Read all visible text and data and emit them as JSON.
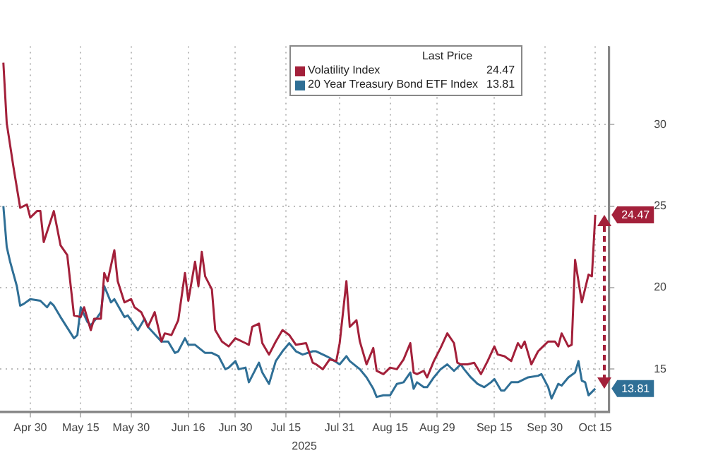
{
  "chart_data": {
    "type": "line",
    "xlabel": "2025",
    "legend_title": "Last Price",
    "legend": "top",
    "grid": true,
    "marker": "none",
    "line_style": "solid",
    "xlim": [
      "2025-04-21",
      "2025-10-19"
    ],
    "xticks": [
      {
        "value": "2025-04-30",
        "label": "Apr 30"
      },
      {
        "value": "2025-05-15",
        "label": "May 15"
      },
      {
        "value": "2025-05-30",
        "label": "May 30"
      },
      {
        "value": "2025-06-16",
        "label": "Jun 16"
      },
      {
        "value": "2025-06-30",
        "label": "Jun 30"
      },
      {
        "value": "2025-07-15",
        "label": "Jul 15"
      },
      {
        "value": "2025-07-31",
        "label": "Jul 31"
      },
      {
        "value": "2025-08-15",
        "label": "Aug 15"
      },
      {
        "value": "2025-08-29",
        "label": "Aug 29"
      },
      {
        "value": "2025-09-15",
        "label": "Sep 15"
      },
      {
        "value": "2025-09-30",
        "label": "Sep 30"
      },
      {
        "value": "2025-10-15",
        "label": "Oct 15"
      }
    ],
    "ylim": [
      12.4,
      34.8
    ],
    "yticks": [
      15,
      20,
      25,
      30
    ],
    "series": [
      {
        "name": "Volatility Index",
        "color": "#a3203a",
        "x": [
          "2025-04-22",
          "2025-04-23",
          "2025-04-25",
          "2025-04-27",
          "2025-04-29",
          "2025-04-30",
          "2025-05-02",
          "2025-05-03",
          "2025-05-04",
          "2025-05-07",
          "2025-05-09",
          "2025-05-11",
          "2025-05-13",
          "2025-05-15",
          "2025-05-16",
          "2025-05-18",
          "2025-05-19",
          "2025-05-21",
          "2025-05-22",
          "2025-05-23",
          "2025-05-25",
          "2025-05-26",
          "2025-05-28",
          "2025-05-30",
          "2025-05-31",
          "2025-06-02",
          "2025-06-04",
          "2025-06-06",
          "2025-06-08",
          "2025-06-09",
          "2025-06-11",
          "2025-06-13",
          "2025-06-15",
          "2025-06-16",
          "2025-06-18",
          "2025-06-19",
          "2025-06-20",
          "2025-06-21",
          "2025-06-23",
          "2025-06-24",
          "2025-06-26",
          "2025-06-28",
          "2025-06-30",
          "2025-07-03",
          "2025-07-04",
          "2025-07-05",
          "2025-07-07",
          "2025-07-08",
          "2025-07-10",
          "2025-07-12",
          "2025-07-14",
          "2025-07-16",
          "2025-07-18",
          "2025-07-21",
          "2025-07-23",
          "2025-07-24",
          "2025-07-26",
          "2025-07-28",
          "2025-07-30",
          "2025-07-31",
          "2025-08-02",
          "2025-08-03",
          "2025-08-05",
          "2025-08-06",
          "2025-08-08",
          "2025-08-10",
          "2025-08-11",
          "2025-08-13",
          "2025-08-15",
          "2025-08-17",
          "2025-08-19",
          "2025-08-21",
          "2025-08-22",
          "2025-08-23",
          "2025-08-25",
          "2025-08-26",
          "2025-08-28",
          "2025-08-30",
          "2025-09-01",
          "2025-09-03",
          "2025-09-04",
          "2025-09-05",
          "2025-09-07",
          "2025-09-09",
          "2025-09-11",
          "2025-09-13",
          "2025-09-15",
          "2025-09-16",
          "2025-09-18",
          "2025-09-20",
          "2025-09-22",
          "2025-09-23",
          "2025-09-24",
          "2025-09-26",
          "2025-09-28",
          "2025-09-29",
          "2025-10-01",
          "2025-10-03",
          "2025-10-04",
          "2025-10-05",
          "2025-10-07",
          "2025-10-08",
          "2025-10-09",
          "2025-10-11",
          "2025-10-13",
          "2025-10-14",
          "2025-10-15"
        ],
        "values": [
          33.8,
          30.1,
          27.4,
          24.9,
          25.1,
          24.3,
          24.7,
          24.7,
          22.8,
          24.7,
          22.6,
          22.0,
          18.3,
          18.2,
          18.8,
          17.4,
          18.1,
          18.1,
          20.9,
          20.4,
          22.3,
          20.4,
          19.1,
          19.3,
          18.8,
          18.5,
          17.6,
          18.5,
          16.7,
          17.2,
          17.1,
          18.0,
          20.9,
          19.2,
          21.6,
          20.1,
          22.2,
          20.7,
          19.9,
          17.4,
          16.7,
          16.4,
          16.9,
          16.6,
          16.5,
          17.6,
          17.8,
          16.6,
          15.9,
          16.7,
          17.4,
          17.1,
          16.5,
          16.6,
          15.4,
          15.3,
          15.0,
          15.6,
          15.5,
          16.6,
          20.4,
          17.6,
          18.0,
          16.7,
          15.3,
          16.3,
          14.9,
          14.7,
          15.1,
          15.0,
          15.6,
          16.6,
          14.8,
          14.7,
          14.9,
          14.5,
          15.5,
          16.3,
          17.2,
          16.6,
          15.4,
          15.3,
          15.3,
          15.4,
          14.7,
          15.5,
          16.4,
          15.9,
          15.8,
          15.5,
          16.6,
          16.3,
          16.7,
          15.3,
          16.1,
          16.3,
          16.7,
          16.7,
          16.4,
          17.2,
          16.4,
          16.5,
          21.7,
          19.1,
          20.8,
          20.7,
          24.47
        ]
      },
      {
        "name": "20 Year Treasury Bond ETF Index",
        "color": "#2f6f96",
        "x": [
          "2025-04-22",
          "2025-04-23",
          "2025-04-24",
          "2025-04-26",
          "2025-04-27",
          "2025-04-28",
          "2025-04-30",
          "2025-05-03",
          "2025-05-05",
          "2025-05-06",
          "2025-05-07",
          "2025-05-09",
          "2025-05-13",
          "2025-05-14",
          "2025-05-15",
          "2025-05-17",
          "2025-05-18",
          "2025-05-20",
          "2025-05-21",
          "2025-05-22",
          "2025-05-24",
          "2025-05-25",
          "2025-05-28",
          "2025-05-29",
          "2025-06-01",
          "2025-06-03",
          "2025-06-04",
          "2025-06-08",
          "2025-06-10",
          "2025-06-12",
          "2025-06-13",
          "2025-06-15",
          "2025-06-16",
          "2025-06-18",
          "2025-06-21",
          "2025-06-23",
          "2025-06-25",
          "2025-06-27",
          "2025-06-28",
          "2025-06-30",
          "2025-07-01",
          "2025-07-03",
          "2025-07-04",
          "2025-07-07",
          "2025-07-08",
          "2025-07-10",
          "2025-07-12",
          "2025-07-14",
          "2025-07-16",
          "2025-07-18",
          "2025-07-20",
          "2025-07-23",
          "2025-07-24",
          "2025-07-27",
          "2025-07-28",
          "2025-07-31",
          "2025-08-02",
          "2025-08-03",
          "2025-08-06",
          "2025-08-08",
          "2025-08-10",
          "2025-08-11",
          "2025-08-13",
          "2025-08-15",
          "2025-08-17",
          "2025-08-19",
          "2025-08-21",
          "2025-08-22",
          "2025-08-23",
          "2025-08-25",
          "2025-08-26",
          "2025-08-28",
          "2025-08-30",
          "2025-09-01",
          "2025-09-03",
          "2025-09-05",
          "2025-09-06",
          "2025-09-08",
          "2025-09-10",
          "2025-09-12",
          "2025-09-14",
          "2025-09-15",
          "2025-09-17",
          "2025-09-18",
          "2025-09-20",
          "2025-09-22",
          "2025-09-25",
          "2025-09-28",
          "2025-09-29",
          "2025-10-01",
          "2025-10-02",
          "2025-10-04",
          "2025-10-05",
          "2025-10-07",
          "2025-10-09",
          "2025-10-10",
          "2025-10-11",
          "2025-10-12",
          "2025-10-13",
          "2025-10-15"
        ],
        "values": [
          25.0,
          22.5,
          21.6,
          20.1,
          18.9,
          19.0,
          19.3,
          19.2,
          18.8,
          19.1,
          18.9,
          18.2,
          16.9,
          17.1,
          18.8,
          17.9,
          17.7,
          18.2,
          18.5,
          20.1,
          19.1,
          19.3,
          18.2,
          18.3,
          17.4,
          18.1,
          17.6,
          16.7,
          16.7,
          16.0,
          16.1,
          16.9,
          16.5,
          16.5,
          16.0,
          16.0,
          15.8,
          15.0,
          15.1,
          15.5,
          15.0,
          15.1,
          14.2,
          15.4,
          14.8,
          14.1,
          15.5,
          16.1,
          16.6,
          16.1,
          15.9,
          16.1,
          16.1,
          15.8,
          15.7,
          15.3,
          15.8,
          15.5,
          15.0,
          14.5,
          13.8,
          13.3,
          13.4,
          13.4,
          14.1,
          14.2,
          14.8,
          13.8,
          14.2,
          13.9,
          13.9,
          14.5,
          15.0,
          15.3,
          14.9,
          15.3,
          15.0,
          14.5,
          14.1,
          13.9,
          14.2,
          14.4,
          13.7,
          13.7,
          14.2,
          14.2,
          14.5,
          14.6,
          14.7,
          13.9,
          13.2,
          14.1,
          14.0,
          14.5,
          14.8,
          15.5,
          14.3,
          14.2,
          13.4,
          13.81
        ]
      }
    ],
    "annotations": [
      {
        "text": "24.47",
        "x": "2025-10-15",
        "y": 24.47
      },
      {
        "text": "13.81",
        "x": "2025-10-15",
        "y": 13.81
      }
    ]
  }
}
